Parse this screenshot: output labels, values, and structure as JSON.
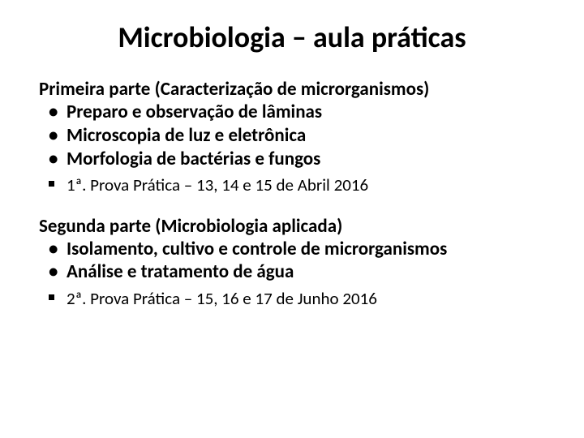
{
  "title": {
    "text": "Microbiologia – aula práticas",
    "fontsize": 36,
    "color": "#000000",
    "weight": 700
  },
  "body_fontsize": 23,
  "exam_fontsize": 21,
  "text_color": "#000000",
  "background_color": "#ffffff",
  "part1": {
    "heading": "Primeira parte (Caracterização de microrganismos)",
    "bullets": [
      "Preparo e observação de lâminas",
      "Microscopia de luz e eletrônica",
      "Morfologia de bactérias e fungos"
    ],
    "exam": "1ª. Prova Prática – 13, 14 e 15 de Abril 2016"
  },
  "part2": {
    "heading": "Segunda parte (Microbiologia aplicada)",
    "bullets": [
      "Isolamento, cultivo e controle de microrganismos",
      "Análise e tratamento de água"
    ],
    "exam": "2ª. Prova Prática – 15, 16 e 17 de Junho 2016"
  }
}
